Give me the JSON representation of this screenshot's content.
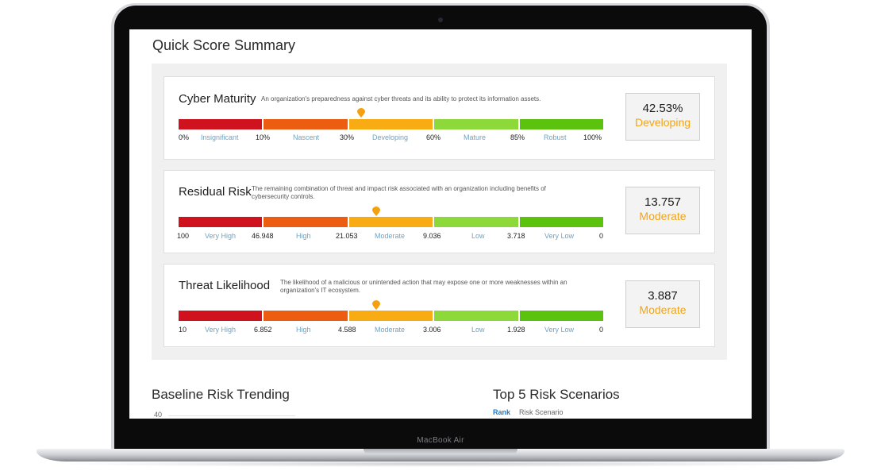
{
  "device": {
    "name": "MacBook Air"
  },
  "colors": {
    "levels": [
      "#d0121e",
      "#ec5d12",
      "#f8ab13",
      "#8ed93a",
      "#5bc20e"
    ],
    "marker": "#f5a00f",
    "score_level": "#f2a517",
    "band_label": "#6fa2c4",
    "link": "#1f78c7"
  },
  "page": {
    "title": "Quick Score Summary"
  },
  "cards": [
    {
      "title": "Cyber Maturity",
      "description": "An organization's preparedness against cyber threats and its ability to protect its information assets.",
      "ticks": [
        "0%",
        "10%",
        "30%",
        "60%",
        "85%",
        "100%"
      ],
      "bands": [
        "Insignificant",
        "Nascent",
        "Developing",
        "Mature",
        "Robust"
      ],
      "marker_fraction": 0.43,
      "score": "42.53%",
      "level": "Developing"
    },
    {
      "title": "Residual Risk",
      "description": "The remaining combination of threat and impact risk associated with an organization including benefits of cybersecurity controls.",
      "ticks": [
        "100",
        "46.948",
        "21.053",
        "9.036",
        "3.718",
        "0"
      ],
      "bands": [
        "Very High",
        "High",
        "Moderate",
        "Low",
        "Very Low"
      ],
      "marker_fraction": 0.465,
      "score": "13.757",
      "level": "Moderate"
    },
    {
      "title": "Threat Likelihood",
      "description": "The likelihood of a malicious or unintended action that may expose one or more weaknesses within an organization's IT ecosystem.",
      "ticks": [
        "10",
        "6.852",
        "4.588",
        "3.006",
        "1.928",
        "0"
      ],
      "bands": [
        "Very High",
        "High",
        "Moderate",
        "Low",
        "Very Low"
      ],
      "marker_fraction": 0.465,
      "score": "3.887",
      "level": "Moderate"
    }
  ],
  "trending": {
    "title": "Baseline Risk Trending",
    "y_tick": "40"
  },
  "scenarios": {
    "title": "Top 5 Risk Scenarios",
    "columns": [
      "Rank",
      "Risk Scenario"
    ]
  }
}
